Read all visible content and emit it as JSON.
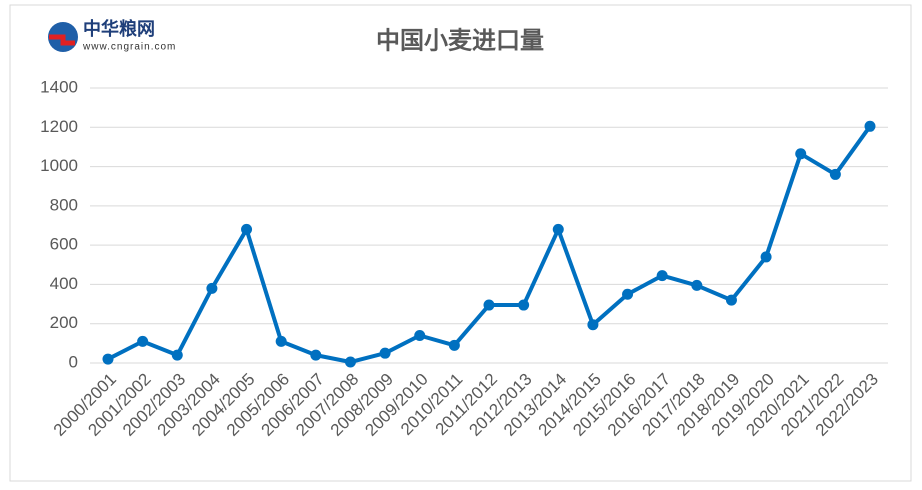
{
  "logo": {
    "name": "中华粮网",
    "url": "www.cngrain.com"
  },
  "chart_data": {
    "type": "line",
    "title": "中国小麦进口量",
    "categories": [
      "2000/2001",
      "2001/2002",
      "2002/2003",
      "2003/2004",
      "2004/2005",
      "2005/2006",
      "2006/2007",
      "2007/2008",
      "2008/2009",
      "2009/2010",
      "2010/2011",
      "2011/2012",
      "2012/2013",
      "2013/2014",
      "2014/2015",
      "2015/2016",
      "2016/2017",
      "2017/2018",
      "2018/2019",
      "2019/2020",
      "2020/2021",
      "2021/2022",
      "2022/2023"
    ],
    "series": [
      {
        "name": "小麦进口量",
        "color": "#0070c0",
        "values": [
          20,
          110,
          40,
          380,
          680,
          110,
          40,
          5,
          50,
          140,
          90,
          295,
          295,
          680,
          195,
          350,
          445,
          395,
          320,
          540,
          1065,
          960,
          1205
        ]
      }
    ],
    "ylim": [
      0,
      1400
    ],
    "yticks": [
      0,
      200,
      400,
      600,
      800,
      1000,
      1200,
      1400
    ],
    "grid": true
  }
}
